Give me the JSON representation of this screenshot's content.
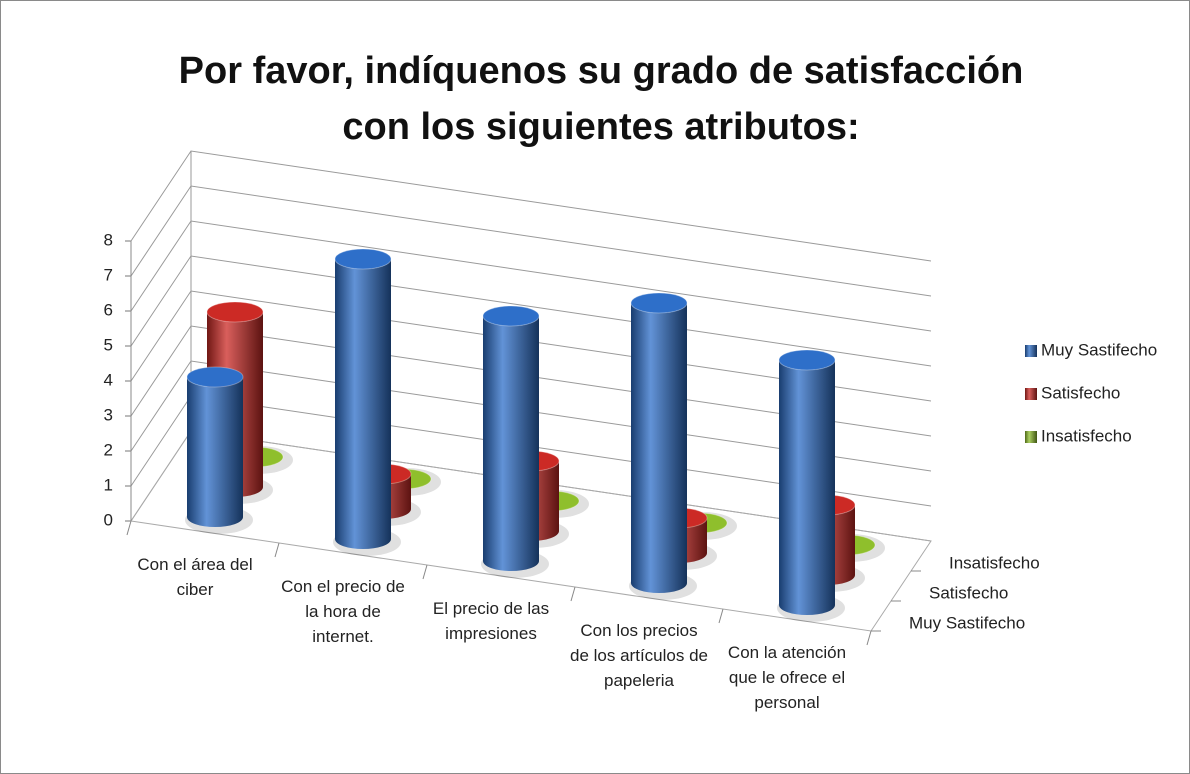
{
  "chart_data": {
    "type": "bar3d",
    "title": "Por favor, indíquenos su grado de satisfacción con los siguientes atributos:",
    "categories": [
      "Con el área del ciber",
      "Con el precio de la hora de internet.",
      "El precio de las impresiones",
      "Con los precios de los artículos de papeleria",
      "Con la atención que le ofrece el personal"
    ],
    "series": [
      {
        "name": "Muy Sastifecho",
        "color": "#2e6fc9",
        "values": [
          4,
          8,
          7,
          8,
          7
        ]
      },
      {
        "name": "Satisfecho",
        "color": "#cc2a25",
        "values": [
          5,
          1,
          2,
          1,
          2
        ]
      },
      {
        "name": "Insatisfecho",
        "color": "#8fbf2c",
        "values": [
          0,
          0,
          0,
          0,
          0
        ]
      }
    ],
    "ylim": [
      0,
      8
    ],
    "yticks": [
      0,
      1,
      2,
      3,
      4,
      5,
      6,
      7,
      8
    ],
    "grid": true,
    "legend": "right"
  }
}
